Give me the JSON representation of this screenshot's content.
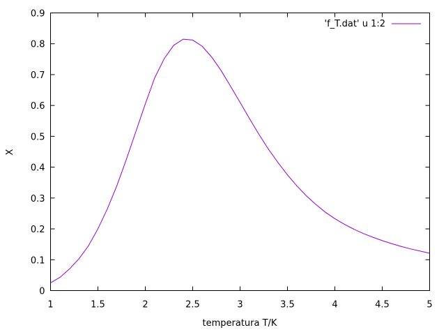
{
  "chart_data": {
    "type": "line",
    "xlabel": "temperatura T/K",
    "ylabel": "X",
    "xlim": [
      1,
      5
    ],
    "ylim": [
      0,
      0.9
    ],
    "xticks": [
      1,
      1.5,
      2,
      2.5,
      3,
      3.5,
      4,
      4.5,
      5
    ],
    "yticks": [
      0,
      0.1,
      0.2,
      0.3,
      0.4,
      0.5,
      0.6,
      0.7,
      0.8,
      0.9
    ],
    "xtick_labels": [
      "1",
      "1.5",
      "2",
      "2.5",
      "3",
      "3.5",
      "4",
      "4.5",
      "5"
    ],
    "ytick_labels": [
      "0",
      "0.1",
      "0.2",
      "0.3",
      "0.4",
      "0.5",
      "0.6",
      "0.7",
      "0.8",
      "0.9"
    ],
    "grid": false,
    "legend_position": "top-right",
    "series": [
      {
        "name": "'f_T.dat' u 1:2",
        "color": "#9400d3",
        "x": [
          1.0,
          1.1,
          1.2,
          1.3,
          1.4,
          1.5,
          1.6,
          1.7,
          1.8,
          1.9,
          2.0,
          2.1,
          2.2,
          2.3,
          2.4,
          2.5,
          2.6,
          2.7,
          2.8,
          2.9,
          3.0,
          3.1,
          3.2,
          3.3,
          3.4,
          3.5,
          3.6,
          3.7,
          3.8,
          3.9,
          4.0,
          4.1,
          4.2,
          4.3,
          4.4,
          4.5,
          4.6,
          4.7,
          4.8,
          4.9,
          5.0
        ],
        "y": [
          0.025,
          0.043,
          0.07,
          0.103,
          0.145,
          0.2,
          0.265,
          0.34,
          0.425,
          0.515,
          0.605,
          0.69,
          0.752,
          0.795,
          0.815,
          0.812,
          0.792,
          0.757,
          0.713,
          0.662,
          0.61,
          0.557,
          0.506,
          0.458,
          0.415,
          0.375,
          0.339,
          0.307,
          0.279,
          0.254,
          0.233,
          0.215,
          0.199,
          0.185,
          0.173,
          0.162,
          0.152,
          0.143,
          0.135,
          0.128,
          0.121
        ]
      }
    ]
  }
}
